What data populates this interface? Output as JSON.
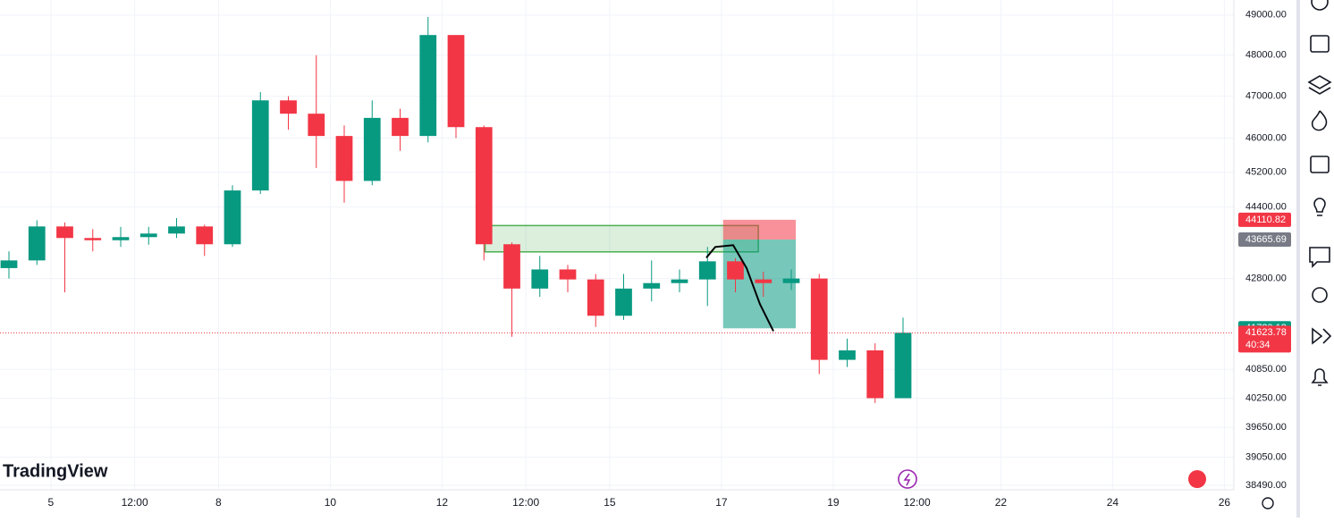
{
  "branding": "TradingView",
  "chart_data": {
    "type": "candlestick",
    "x": [
      4.25,
      4.75,
      5.25,
      5.75,
      6.25,
      6.75,
      7.25,
      7.75,
      8.25,
      8.75,
      9.25,
      9.75,
      10.25,
      10.75,
      11.25,
      11.75,
      12.25,
      12.75,
      13.25,
      13.75,
      14.25,
      14.75,
      15.25,
      15.75,
      16.25,
      16.75,
      17.25,
      17.75,
      18.25,
      18.75,
      19.25,
      19.75,
      20.25
    ],
    "open": [
      43030,
      43200,
      43960,
      43700,
      43650,
      43720,
      43800,
      43960,
      43560,
      44780,
      46900,
      46580,
      46050,
      45000,
      46480,
      46050,
      48500,
      46260,
      43560,
      42580,
      43000,
      42780,
      41990,
      42580,
      42700,
      42780,
      43180,
      42780,
      42700,
      42800,
      41050,
      41250,
      40250
    ],
    "high": [
      43400,
      44100,
      44050,
      43900,
      43950,
      43950,
      44150,
      44000,
      44900,
      47100,
      47000,
      48000,
      46300,
      46900,
      46700,
      48950,
      48500,
      46300,
      43600,
      43300,
      43100,
      42900,
      42900,
      43200,
      43000,
      43500,
      43250,
      42950,
      43000,
      42900,
      41500,
      41400,
      41950
    ],
    "low": [
      42800,
      43100,
      42500,
      43400,
      43500,
      43550,
      43700,
      43300,
      43500,
      44700,
      46200,
      45300,
      44500,
      44900,
      45700,
      45900,
      46000,
      43200,
      41540,
      42400,
      42500,
      41750,
      41900,
      42300,
      42500,
      42200,
      42500,
      42400,
      42550,
      40750,
      40900,
      40150,
      40250
    ],
    "close": [
      43200,
      43960,
      43700,
      43650,
      43720,
      43800,
      43960,
      43560,
      44780,
      46900,
      46580,
      46050,
      45000,
      46480,
      46050,
      48500,
      46260,
      43560,
      42580,
      43000,
      42780,
      41990,
      42580,
      42700,
      42780,
      43180,
      42780,
      42700,
      42800,
      41050,
      41250,
      40250,
      41623.78
    ],
    "up_color": "#089981",
    "down_color": "#f23645",
    "xlim": [
      4.09,
      26.17
    ],
    "xticks": [
      5,
      {
        "value": 6.5,
        "label": "12:00"
      },
      8,
      10,
      12,
      {
        "value": 13.5,
        "label": "12:00"
      },
      15,
      17,
      19,
      {
        "value": 20.5,
        "label": "12:00"
      },
      22,
      24,
      26
    ],
    "ylim": [
      38400,
      49380
    ],
    "log_scale": true,
    "yticks": [
      {
        "value": 49000,
        "label": "49000.00"
      },
      {
        "value": 48000,
        "label": "48000.00"
      },
      {
        "value": 47000,
        "label": "47000.00"
      },
      {
        "value": 46000,
        "label": "46000.00"
      },
      {
        "value": 45200,
        "label": "45200.00"
      },
      {
        "value": 44400,
        "label": "44400.00"
      },
      {
        "value": 42800,
        "label": "42800.00"
      },
      {
        "value": 40850,
        "label": "40850.00"
      },
      {
        "value": 40250,
        "label": "40250.00"
      },
      {
        "value": 39650,
        "label": "39650.00"
      },
      {
        "value": 39050,
        "label": "39050.00"
      },
      {
        "value": 38490,
        "label": "38490.00"
      }
    ],
    "grid": true,
    "zone": {
      "x": [
        12.77,
        17.66
      ],
      "values": [
        43980,
        43390
      ],
      "color": "#4caf50"
    },
    "position": {
      "x": [
        17.03,
        18.33
      ],
      "stop": 44110.82,
      "entry": 43665.69,
      "target": 41720.13,
      "stop_color": "#f23645",
      "target_color": "#089981",
      "entry_color": "#787b86"
    },
    "sketch": {
      "x": [
        16.73,
        16.89,
        17.21,
        17.45,
        17.69,
        17.93
      ],
      "values": [
        43260,
        43500,
        43540,
        43030,
        42240,
        41660
      ]
    },
    "countdown": "40:34"
  }
}
